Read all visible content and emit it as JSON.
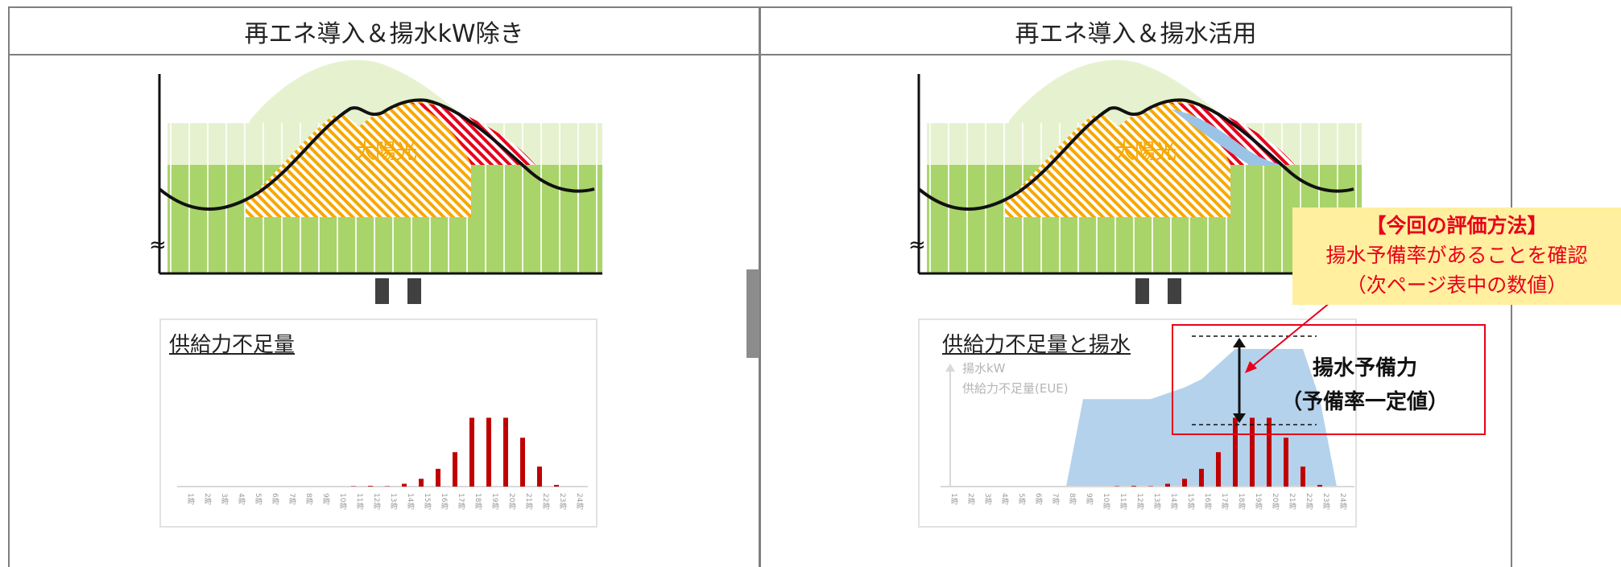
{
  "left_panel": {
    "header": "再エネ導入＆揚水kW除き",
    "solar_label": "太陽光",
    "break_mark": "≈",
    "box_title": "供給力不足量"
  },
  "right_panel": {
    "header": "再エネ導入＆揚水活用",
    "solar_label": "太陽光",
    "break_mark": "≈",
    "box_title": "供給力不足量と揚水",
    "legend": {
      "pump_kw": "揚水kW",
      "eue": "供給力不足量(EUE)"
    }
  },
  "method_box": {
    "title": "【今回の評価方法】",
    "line1": "揚水予備率があることを確認",
    "line2": "（次ページ表中の数値）"
  },
  "reserve_label": {
    "line1": "揚水予備力",
    "line2": "（予備率一定値）"
  },
  "hour_labels": [
    "1時",
    "2時",
    "3時",
    "4時",
    "5時",
    "6時",
    "7時",
    "8時",
    "9時",
    "10時",
    "11時",
    "12時",
    "13時",
    "14時",
    "15時",
    "16時",
    "17時",
    "18時",
    "19時",
    "20時",
    "21時",
    "22時",
    "23時",
    "24時"
  ],
  "shortfall_left": [
    0,
    0,
    0,
    0,
    0,
    0,
    0,
    0,
    0,
    0,
    0.3,
    0.6,
    0.3,
    2.5,
    7,
    16,
    31,
    62,
    62,
    62,
    44,
    18,
    1.5,
    0
  ],
  "shortfall_right": [
    0,
    0,
    0,
    0,
    0,
    0,
    0,
    0,
    0,
    0,
    0.3,
    0.6,
    0.3,
    2.5,
    7,
    16,
    31,
    62,
    62,
    62,
    44,
    18,
    1.5,
    0
  ],
  "pump_kw_profile": [
    0,
    0,
    0,
    0,
    0,
    0,
    0,
    0,
    75,
    75,
    75,
    75,
    75,
    80,
    85,
    92,
    105,
    118,
    118,
    118,
    118,
    118,
    75,
    0
  ],
  "colors": {
    "shortfall": "#c00000",
    "pump": "#b4d2ec",
    "green": "#a9d46a",
    "accent": "#e8001c"
  }
}
